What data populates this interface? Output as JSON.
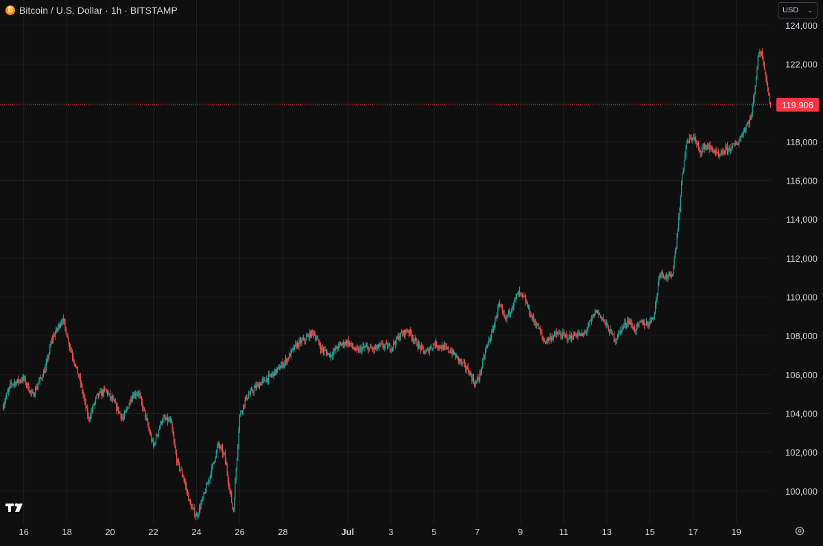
{
  "header": {
    "symbol_title": "Bitcoin / U.S. Dollar · 1h · BITSTAMP",
    "coin_icon_glyph": "₿",
    "coin_icon": "bitcoin-icon"
  },
  "currency_select": {
    "value": "USD"
  },
  "colors": {
    "background": "#0f0f0f",
    "up": "#26a69a",
    "down": "#ef5350",
    "grid": "#1f1f1f",
    "text": "#d1d4dc",
    "price_line": "#ef5350",
    "last_price_label_bg": "#f23645"
  },
  "logo": "tradingview-logo",
  "chart_data": {
    "type": "candlestick",
    "title": "Bitcoin / U.S. Dollar · 1h · BITSTAMP",
    "interval": "1h",
    "exchange": "BITSTAMP",
    "currency": "USD",
    "y_ticks": [
      "100,000",
      "102,000",
      "104,000",
      "106,000",
      "108,000",
      "110,000",
      "112,000",
      "114,000",
      "116,000",
      "118,000",
      "120,000",
      "122,000",
      "124,000"
    ],
    "y_tick_values": [
      100000,
      102000,
      104000,
      106000,
      108000,
      110000,
      112000,
      114000,
      116000,
      118000,
      120000,
      122000,
      124000
    ],
    "ylim": [
      98300,
      125300
    ],
    "x_ticks": [
      "16",
      "18",
      "20",
      "22",
      "24",
      "26",
      "28",
      "Jul",
      "3",
      "5",
      "7",
      "9",
      "11",
      "13",
      "15",
      "17",
      "19"
    ],
    "x_tick_days": [
      16,
      18,
      20,
      22,
      24,
      26,
      28,
      31,
      33,
      35,
      37,
      39,
      41,
      43,
      45,
      47,
      49
    ],
    "xlim_days": [
      14.9,
      50.6
    ],
    "grid": true,
    "last_price": 119906,
    "last_price_label": "119,906",
    "price_path": [
      [
        15.0,
        104300
      ],
      [
        15.4,
        105500
      ],
      [
        16.0,
        105800
      ],
      [
        16.4,
        104900
      ],
      [
        17.0,
        106300
      ],
      [
        17.3,
        107800
      ],
      [
        17.8,
        108900
      ],
      [
        18.2,
        107200
      ],
      [
        18.6,
        105700
      ],
      [
        19.0,
        103700
      ],
      [
        19.4,
        104900
      ],
      [
        19.8,
        105200
      ],
      [
        20.2,
        104500
      ],
      [
        20.6,
        103700
      ],
      [
        21.0,
        104900
      ],
      [
        21.3,
        105100
      ],
      [
        21.6,
        104000
      ],
      [
        22.0,
        102300
      ],
      [
        22.4,
        103700
      ],
      [
        22.8,
        103600
      ],
      [
        23.1,
        101500
      ],
      [
        23.4,
        100700
      ],
      [
        23.7,
        99300
      ],
      [
        24.0,
        98700
      ],
      [
        24.3,
        99600
      ],
      [
        24.7,
        101100
      ],
      [
        25.0,
        102400
      ],
      [
        25.3,
        101800
      ],
      [
        25.7,
        98900
      ],
      [
        26.0,
        103900
      ],
      [
        26.3,
        104800
      ],
      [
        26.7,
        105300
      ],
      [
        27.0,
        105600
      ],
      [
        27.4,
        105900
      ],
      [
        27.8,
        106300
      ],
      [
        28.2,
        106800
      ],
      [
        28.6,
        107500
      ],
      [
        29.0,
        107800
      ],
      [
        29.4,
        108200
      ],
      [
        29.8,
        107300
      ],
      [
        30.2,
        107000
      ],
      [
        30.6,
        107500
      ],
      [
        31.0,
        107700
      ],
      [
        31.4,
        107200
      ],
      [
        31.8,
        107400
      ],
      [
        32.2,
        107300
      ],
      [
        32.6,
        107500
      ],
      [
        33.0,
        107400
      ],
      [
        33.4,
        108000
      ],
      [
        33.8,
        108300
      ],
      [
        34.2,
        107600
      ],
      [
        34.6,
        107100
      ],
      [
        35.0,
        107600
      ],
      [
        35.4,
        107400
      ],
      [
        35.8,
        107200
      ],
      [
        36.2,
        106700
      ],
      [
        36.6,
        106200
      ],
      [
        36.9,
        105500
      ],
      [
        37.1,
        105900
      ],
      [
        37.4,
        107300
      ],
      [
        37.7,
        108200
      ],
      [
        38.0,
        109600
      ],
      [
        38.3,
        108800
      ],
      [
        38.6,
        109500
      ],
      [
        38.9,
        110200
      ],
      [
        39.2,
        109900
      ],
      [
        39.5,
        109000
      ],
      [
        39.8,
        108500
      ],
      [
        40.1,
        107700
      ],
      [
        40.4,
        107900
      ],
      [
        40.7,
        108100
      ],
      [
        41.0,
        108000
      ],
      [
        41.3,
        107900
      ],
      [
        41.6,
        108100
      ],
      [
        41.9,
        108000
      ],
      [
        42.2,
        108600
      ],
      [
        42.5,
        109300
      ],
      [
        42.8,
        108900
      ],
      [
        43.1,
        108300
      ],
      [
        43.4,
        107800
      ],
      [
        43.7,
        108400
      ],
      [
        44.0,
        108800
      ],
      [
        44.3,
        108300
      ],
      [
        44.6,
        108700
      ],
      [
        44.9,
        108600
      ],
      [
        45.2,
        109100
      ],
      [
        45.45,
        111300
      ],
      [
        45.7,
        111100
      ],
      [
        46.0,
        111000
      ],
      [
        46.2,
        112600
      ],
      [
        46.35,
        114200
      ],
      [
        46.5,
        116400
      ],
      [
        46.7,
        117900
      ],
      [
        47.0,
        118300
      ],
      [
        47.3,
        117500
      ],
      [
        47.6,
        117800
      ],
      [
        47.9,
        117600
      ],
      [
        48.2,
        117200
      ],
      [
        48.5,
        117600
      ],
      [
        48.8,
        117700
      ],
      [
        49.1,
        118000
      ],
      [
        49.4,
        118700
      ],
      [
        49.7,
        119300
      ],
      [
        49.9,
        121200
      ],
      [
        50.05,
        122700
      ],
      [
        50.2,
        122500
      ],
      [
        50.35,
        121500
      ],
      [
        50.5,
        120300
      ],
      [
        50.6,
        119906
      ]
    ]
  }
}
